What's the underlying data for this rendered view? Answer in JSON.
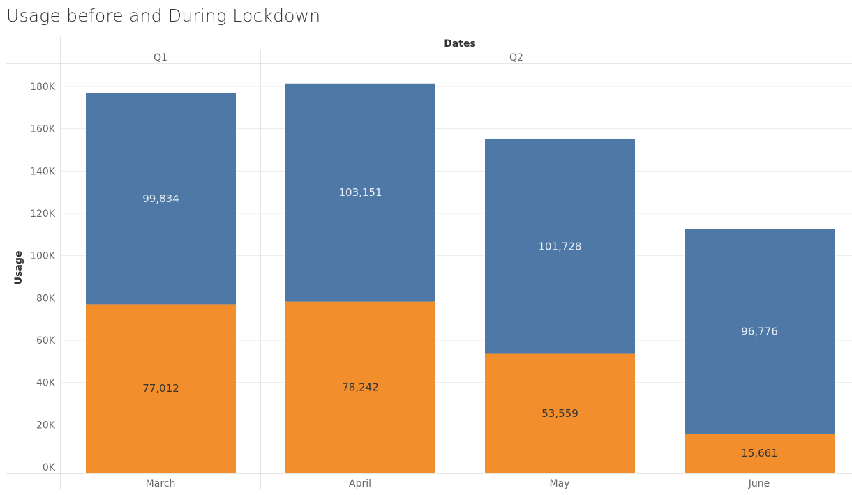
{
  "chart_data": {
    "type": "bar",
    "stacked": true,
    "title": "Usage before and During Lockdown",
    "column_header": "Dates",
    "quarters": [
      {
        "label": "Q1",
        "categories": [
          "March"
        ]
      },
      {
        "label": "Q2",
        "categories": [
          "April",
          "May",
          "June"
        ]
      }
    ],
    "categories": [
      "March",
      "April",
      "May",
      "June"
    ],
    "xlabel": "",
    "ylabel": "Usage",
    "ylim": [
      0,
      190000
    ],
    "yticks": [
      0,
      20000,
      40000,
      60000,
      80000,
      100000,
      120000,
      140000,
      160000,
      180000
    ],
    "ytick_labels": [
      "0K",
      "20K",
      "40K",
      "60K",
      "80K",
      "100K",
      "120K",
      "140K",
      "160K",
      "180K"
    ],
    "grid": true,
    "series": [
      {
        "color": "#f28e2b",
        "label_color": "#333333",
        "values": [
          77012,
          78242,
          53559,
          15661
        ],
        "labels": [
          "77,012",
          "78,242",
          "53,559",
          "15,661"
        ]
      },
      {
        "color": "#4e79a7",
        "label_color": "#e8eef5",
        "values": [
          99834,
          103151,
          101728,
          96776
        ],
        "labels": [
          "99,834",
          "103,151",
          "101,728",
          "96,776"
        ]
      }
    ]
  }
}
